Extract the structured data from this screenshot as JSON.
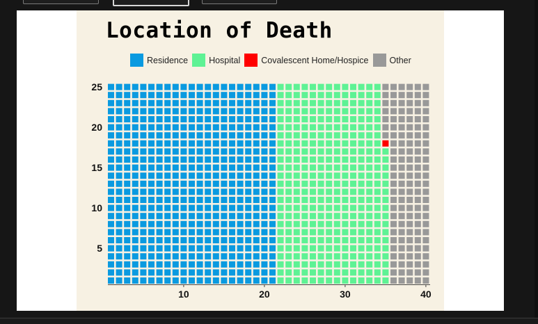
{
  "chart_data": {
    "type": "waffle",
    "title": "Location of Death",
    "grid_columns": 40,
    "grid_rows": 25,
    "unit_order": "column-major, bottom to top, left to right",
    "series": [
      {
        "name": "Residence",
        "units": 525,
        "color": "#0a9ae0"
      },
      {
        "name": "Hospital",
        "units": 342,
        "color": "#5ef294"
      },
      {
        "name": "Covalescent Home/Hospice",
        "units": 1,
        "color": "#ff0000"
      },
      {
        "name": "Other",
        "units": 132,
        "color": "#999999"
      }
    ],
    "x_ticks": [
      "10",
      "20",
      "30",
      "40"
    ],
    "y_ticks": [
      "5",
      "10",
      "15",
      "20",
      "25"
    ],
    "legend_position": "top"
  }
}
